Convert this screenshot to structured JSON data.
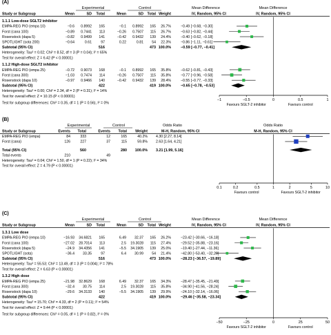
{
  "chart_data": [
    {
      "panel": "(A)",
      "type": "forest",
      "columns": {
        "study": "Study or Subgroup",
        "group1": "Experimental",
        "group2": "Control",
        "mean": "Mean",
        "sd": "SD",
        "total": "Total",
        "weight": "Weight",
        "effect_header": "Mean Difference",
        "effect_method": "IV, Random, 95% CI"
      },
      "subgroups": [
        {
          "label": "1.1.1 Low-dose SGLT2 inhibitor",
          "studies": [
            {
              "name": "EMPA-REG PIO (empa 10)",
              "e_mean": "−0.6",
              "e_sd": "0.8992",
              "e_total": "165",
              "c_mean": "−0.1",
              "c_sd": "0.8992",
              "c_total": "165",
              "weight": "26.7%",
              "ci_text": "−0.49 [−0.68, −0.30]",
              "est": -0.49,
              "lo": -0.68,
              "hi": -0.3,
              "w": 26.7
            },
            {
              "name": "Forst (cana 100)",
              "e_mean": "−0.89",
              "e_sd": "0.7441",
              "e_total": "113",
              "c_mean": "−0.26",
              "c_sd": "0.7507",
              "c_total": "115",
              "weight": "26.7%",
              "ci_text": "−0.63 [−0.82, −0.44]",
              "est": -0.63,
              "lo": -0.82,
              "hi": -0.44,
              "w": 26.7
            },
            {
              "name": "Rosenstock (dapa 5)",
              "e_mean": "−0.82",
              "e_sd": "0.9499",
              "e_total": "141",
              "c_mean": "−0.42",
              "c_sd": "0.9432",
              "c_total": "139",
              "weight": "24.4%",
              "ci_text": "−0.40 [−0.62, −0.18]",
              "est": -0.4,
              "lo": -0.62,
              "hi": -0.18,
              "w": 24.4
            },
            {
              "name": "SPOTLIGHT (sota 200)",
              "e_mean": "−0.64",
              "e_sd": "0.61",
              "e_total": "97",
              "c_mean": "0.22",
              "c_sd": "0.81",
              "c_total": "54",
              "weight": "22.3%",
              "ci_text": "−0.86 [−1.11, −0.61]",
              "est": -0.86,
              "lo": -1.11,
              "hi": -0.61,
              "w": 22.3
            }
          ],
          "subtotal": {
            "label": "Subtotal (95% CI)",
            "e_total": "516",
            "c_total": "473",
            "weight": "100.0%",
            "ci_text": "−0.59 [−0.77, −0.41]",
            "est": -0.59,
            "lo": -0.77,
            "hi": -0.41
          },
          "heterogeneity": "Heterogeneity: Tau² = 0.02; Chi² = 8.52, df = 3 (P = 0.04); I² = 65%",
          "overall_test": "Test for overall effect: Z = 6.42 (P < 0.00001)"
        },
        {
          "label": "1.1.2 High-dose SGLT2 inhibitor",
          "studies": [
            {
              "name": "EMPA-REG PIO (empa 25)",
              "e_mean": "−0.72",
              "e_sd": "0.9073",
              "e_total": "168",
              "c_mean": "−0.1",
              "c_sd": "0.8992",
              "c_total": "165",
              "weight": "35.8%",
              "ci_text": "−0.62 [−0.81, −0.43]",
              "est": -0.62,
              "lo": -0.81,
              "hi": -0.43,
              "w": 35.8
            },
            {
              "name": "Forst (cana 300)",
              "e_mean": "−1.03",
              "e_sd": "0.7474",
              "e_total": "114",
              "c_mean": "−0.26",
              "c_sd": "0.7507",
              "c_total": "115",
              "weight": "35.8%",
              "ci_text": "−0.77 [−0.96, −0.58]",
              "est": -0.77,
              "lo": -0.96,
              "hi": -0.58,
              "w": 35.8
            },
            {
              "name": "Rosenstock (dapa 10)",
              "e_mean": "−0.97",
              "e_sd": "0.9466",
              "e_total": "140",
              "c_mean": "−0.42",
              "c_sd": "0.9432",
              "c_total": "139",
              "weight": "28.4%",
              "ci_text": "−0.55 [−0.77, −0.33]",
              "est": -0.55,
              "lo": -0.77,
              "hi": -0.33,
              "w": 28.4
            }
          ],
          "subtotal": {
            "label": "Subtotal (95% CI)",
            "e_total": "422",
            "c_total": "419",
            "weight": "100.0%",
            "ci_text": "−0.65 [−0.78, −0.53]",
            "est": -0.65,
            "lo": -0.78,
            "hi": -0.53
          },
          "heterogeneity": "Heterogeneity: Tau² = 0.00; Chi² = 2.34, df = 2 (P = 0.31); I² = 14%",
          "overall_test": "Test for overall effect: Z = 10.15 (P < 0.00001)"
        }
      ],
      "subgroup_test": "Test for subgroup differences: Chi² = 0.35, df = 1 (P = 0.56), I² = 0%",
      "axis": {
        "xlim": [
          -1,
          1
        ],
        "ticks": [
          -1,
          -0.5,
          0,
          0.5,
          1
        ],
        "tick_labels": [
          "−1",
          "−0.5",
          "0",
          "0.5",
          "1"
        ],
        "left_label": "Favours SGLT-2 inhibitor",
        "right_label": "Favours control"
      }
    },
    {
      "panel": "(B)",
      "type": "forest",
      "columns": {
        "study": "Study or Subgroup",
        "group1": "Experimental",
        "group2": "Control",
        "events": "Events",
        "total": "Total",
        "weight": "Weight",
        "effect_header": "Odds Ratio",
        "effect_method": "M-H, Random, 95% CI"
      },
      "studies": [
        {
          "name": "EMPA-REG PIO (empa)",
          "e_events": "84",
          "e_total": "333",
          "c_events": "12",
          "c_total": "165",
          "weight": "40.2%",
          "ci_text": "4.30 [2.27, 8.14]",
          "est": 4.3,
          "lo": 2.27,
          "hi": 8.14,
          "w": 40.2
        },
        {
          "name": "Forst (cana)",
          "e_events": "126",
          "e_total": "227",
          "c_events": "37",
          "c_total": "115",
          "weight": "59.8%",
          "ci_text": "2.63 [1.64, 4.21]",
          "est": 2.63,
          "lo": 1.64,
          "hi": 4.21,
          "w": 59.8
        }
      ],
      "total": {
        "label": "Total (95% CI)",
        "e_total": "560",
        "c_total": "280",
        "weight": "100.0%",
        "ci_text": "3.21 [1.99, 5.16]",
        "est": 3.21,
        "lo": 1.99,
        "hi": 5.16
      },
      "total_events": {
        "label": "Total events",
        "e": "210",
        "c": "49"
      },
      "heterogeneity": "Heterogeneity: Tau² = 0.04; Chi² = 1.50, df = 1 (P = 0.22); I² = 34%",
      "overall_test": "Test for overall effect: Z = 4.79 (P < 0.00001)",
      "axis": {
        "scale": "log",
        "xlim": [
          0.1,
          10
        ],
        "ticks": [
          0.1,
          0.2,
          0.5,
          1,
          2,
          5,
          10
        ],
        "tick_labels": [
          "0.1",
          "0.2",
          "0.5",
          "1",
          "2",
          "5",
          "10"
        ],
        "left_label": "Favours control",
        "right_label": "Favours SGLT-2 inhibitor"
      }
    },
    {
      "panel": "(C)",
      "type": "forest",
      "columns": {
        "study": "Study or Subgroup",
        "group1": "Experimental",
        "group2": "Control",
        "mean": "Mean",
        "sd": "SD",
        "total": "Total",
        "weight": "Weight",
        "effect_header": "Mean Difference",
        "effect_method": "IV, Random, 95% CI"
      },
      "subgroups": [
        {
          "label": "1.3.1 Low dose",
          "studies": [
            {
              "name": "EMPA-REG PIO (empa 10)",
              "e_mean": "−16.93",
              "e_sd": "34.6821",
              "e_total": "165",
              "c_mean": "6.49",
              "c_sd": "32.37",
              "c_total": "165",
              "weight": "26.2%",
              "ci_text": "−23.42 [−30.66, −16.18]",
              "est": -23.42,
              "lo": -30.66,
              "hi": -16.18,
              "w": 26.2
            },
            {
              "name": "Forst (cana 100)",
              "e_mean": "−27.02",
              "e_sd": "28.7014",
              "e_total": "113",
              "c_mean": "2.5",
              "c_sd": "19.3028",
              "c_total": "115",
              "weight": "27.4%",
              "ci_text": "−29.52 [−35.88, −23.16]",
              "est": -29.52,
              "lo": -35.88,
              "hi": -23.16,
              "w": 27.4
            },
            {
              "name": "Rosenstock (dapa 5)",
              "e_mean": "−24.9",
              "e_sd": "34.4356",
              "e_total": "141",
              "c_mean": "−5.5",
              "c_sd": "34.1905",
              "c_total": "139",
              "weight": "25.0%",
              "ci_text": "−19.40 [−27.44, −11.36]",
              "est": -19.4,
              "lo": -27.44,
              "hi": -11.36,
              "w": 25.0
            },
            {
              "name": "SPOTLIGHT (sota)",
              "e_mean": "−36.4",
              "e_sd": "33.35",
              "e_total": "97",
              "c_mean": "6.4",
              "c_sd": "30.99",
              "c_total": "54",
              "weight": "21.4%",
              "ci_text": "−42.80 [−53.40, −32.20]",
              "est": -42.8,
              "lo": -53.4,
              "hi": -32.2,
              "w": 21.4
            }
          ],
          "subtotal": {
            "label": "Subtotal (95% CI)",
            "e_total": "516",
            "c_total": "473",
            "weight": "100.0%",
            "ci_text": "−28.23 [−36.57, −19.89]",
            "est": -28.23,
            "lo": -36.57,
            "hi": -19.89
          },
          "heterogeneity": "Heterogeneity: Tau² = 55.53; Chi² = 13.49, df = 3 (P = 0.004); I² = 78%",
          "overall_test": "Test for overall effect: Z = 6.63 (P < 0.00001)"
        },
        {
          "label": "1.3.2 High dose",
          "studies": [
            {
              "name": "EMPA-REG PIO (empa 25)",
              "e_mean": "−21.98",
              "e_sd": "32.8629",
              "e_total": "168",
              "c_mean": "6.49",
              "c_sd": "32.37",
              "c_total": "165",
              "weight": "34.3%",
              "ci_text": "−28.47 [−35.45, −21.49]",
              "est": -28.47,
              "lo": -35.45,
              "hi": -21.49,
              "w": 34.3
            },
            {
              "name": "Forst (cana 300)",
              "e_mean": "−32.4",
              "e_sd": "30.75",
              "e_total": "114",
              "c_mean": "2.5",
              "c_sd": "19.3028",
              "c_total": "115",
              "weight": "35.8%",
              "ci_text": "−34.90 [−41.56, −28.24]",
              "est": -34.9,
              "lo": -41.56,
              "hi": -28.24,
              "w": 35.8
            },
            {
              "name": "Rosenstock (dapa 10)",
              "e_mean": "−29.6",
              "e_sd": "34.3133",
              "e_total": "140",
              "c_mean": "−5.5",
              "c_sd": "34.1905",
              "c_total": "139",
              "weight": "29.9%",
              "ci_text": "−24.10 [−32.14, −16.06]",
              "est": -24.1,
              "lo": -32.14,
              "hi": -16.06,
              "w": 29.9
            }
          ],
          "subtotal": {
            "label": "Subtotal (95% CI)",
            "e_total": "422",
            "c_total": "419",
            "weight": "100.0%",
            "ci_text": "−29.46 [−35.58, −23.34]",
            "est": -29.46,
            "lo": -35.58,
            "hi": -23.34
          },
          "heterogeneity": "Heterogeneity: Tau² = 15.70; Chi² = 4.33, df = 2 (P = 0.11); I² = 54%",
          "overall_test": "Test for overall effect: Z = 9.44 (P < 0.00001)"
        }
      ],
      "subgroup_test": "Test for subgroup differences: Chi² = 0.05, df = 1 (P = 0.82), I² = 0%",
      "axis": {
        "xlim": [
          -50,
          50
        ],
        "ticks": [
          -50,
          -25,
          0,
          25,
          50
        ],
        "tick_labels": [
          "−50",
          "−25",
          "0",
          "25",
          "50"
        ],
        "left_label": "Favours SGLT-2 inhibitor",
        "right_label": "Favours control"
      }
    }
  ],
  "colors": {
    "study_square": "#2db84a",
    "total_square": "#1f3fbf",
    "diamond": "#000000",
    "rule": "#000000"
  }
}
